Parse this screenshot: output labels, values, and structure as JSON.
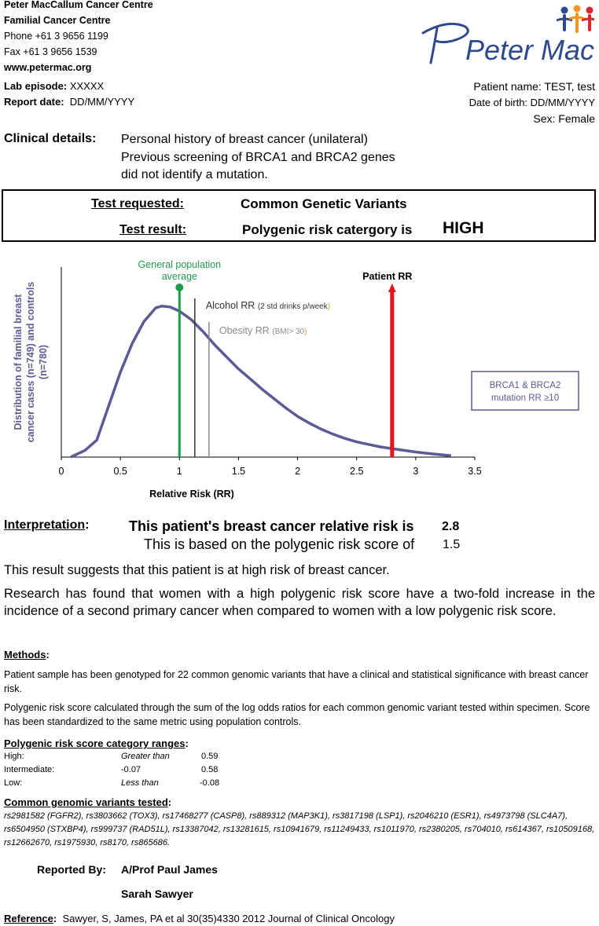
{
  "header": {
    "org": "Peter MacCallum Cancer Centre",
    "dept": "Familial Cancer Centre",
    "phone": "Phone +61 3 9656 1199",
    "fax": "Fax +61 3 9656 1539",
    "web": "www.petermac.org",
    "logo_text": "Peter Mac",
    "lab_label": "Lab episode:",
    "lab_value": "XXXXX",
    "report_label": "Report date:",
    "report_value": "DD/MM/YYYY",
    "patient_name": "Patient name: TEST, test",
    "dob": "Date of birth: DD/MM/YYYY",
    "sex": "Sex: Female",
    "colors": {
      "blue": "#2c4a8c",
      "orange": "#f29422",
      "red": "#d7282f"
    }
  },
  "clinical": {
    "label": "Clinical details:",
    "lines": [
      "Personal history of breast cancer (unilateral)",
      "Previous screening of BRCA1 and BRCA2 genes",
      "did not identify a mutation."
    ]
  },
  "test": {
    "requested_label": "Test requested:",
    "requested_value": "Common Genetic Variants",
    "result_label": "Test result:",
    "result_value": "Polygenic risk catergory is",
    "result_level": "HIGH"
  },
  "chart_data": {
    "type": "line",
    "ylabel": "Distribution of  familial breast cancer cases (n=749) and controls (n=780)",
    "xlabel": "Relative Risk (RR)",
    "xlim": [
      0,
      3.5
    ],
    "xticks": [
      "0",
      "0.5",
      "1",
      "1.5",
      "2",
      "2.5",
      "3",
      "3.5"
    ],
    "curve": [
      [
        0.08,
        0.0
      ],
      [
        0.2,
        0.04
      ],
      [
        0.3,
        0.1
      ],
      [
        0.35,
        0.2
      ],
      [
        0.4,
        0.3
      ],
      [
        0.5,
        0.5
      ],
      [
        0.6,
        0.67
      ],
      [
        0.7,
        0.8
      ],
      [
        0.8,
        0.88
      ],
      [
        0.85,
        0.89
      ],
      [
        0.92,
        0.885
      ],
      [
        1.0,
        0.86
      ],
      [
        1.1,
        0.81
      ],
      [
        1.2,
        0.74
      ],
      [
        1.3,
        0.66
      ],
      [
        1.4,
        0.59
      ],
      [
        1.5,
        0.52
      ],
      [
        1.6,
        0.46
      ],
      [
        1.7,
        0.4
      ],
      [
        1.8,
        0.345
      ],
      [
        1.9,
        0.29
      ],
      [
        2.0,
        0.24
      ],
      [
        2.1,
        0.2
      ],
      [
        2.2,
        0.165
      ],
      [
        2.3,
        0.135
      ],
      [
        2.4,
        0.11
      ],
      [
        2.5,
        0.09
      ],
      [
        2.6,
        0.075
      ],
      [
        2.7,
        0.06
      ],
      [
        2.8,
        0.05
      ],
      [
        2.9,
        0.04
      ],
      [
        3.0,
        0.03
      ],
      [
        3.1,
        0.022
      ],
      [
        3.2,
        0.015
      ],
      [
        3.3,
        0.008
      ]
    ],
    "markers": {
      "population": {
        "x": 1.0,
        "label_1": "General population",
        "label_2": "average",
        "color": "#1e9b4b"
      },
      "alcohol": {
        "x": 1.13,
        "label": "Alcohol RR",
        "note": "(2 std drinks p/week)",
        "close": ")",
        "color": "#333333"
      },
      "obesity": {
        "x": 1.25,
        "label": "Obesity RR",
        "note": "(BMI> 30",
        "close": ")",
        "color": "#8a8a8a"
      },
      "patient": {
        "x": 2.8,
        "label": "Patient RR",
        "color": "#e3141b"
      }
    },
    "brca_box": {
      "line_1": "BRCA1 & BRCA2",
      "line_2": "mutation RR ≥10",
      "color": "#5b5b95"
    },
    "curve_color": "#5b5b95",
    "grid": false
  },
  "interpretation": {
    "label": "Interpretation",
    "colon": ":",
    "line1": "This patient's breast cancer relative risk is",
    "rr": "2.8",
    "line2": "This is based on the polygenic risk score of",
    "score": "1.5"
  },
  "paragraphs": {
    "p1": "This result suggests that this patient is at high risk of breast cancer.",
    "p2": "Research has found that women with a high polygenic risk score have a two-fold increase in the incidence of a second primary cancer when compared to women with a low polygenic risk score."
  },
  "methods": {
    "title": "Methods",
    "colon": ":",
    "p1": "Patient sample has been genotyped for 22 common genomic variants that have a clinical and statistical significance with breast cancer risk.",
    "p2": "Polygenic risk score calculated through the sum of the log odds ratios for each common genomic variant tested within specimen. Score has been standardized to the same metric using population controls."
  },
  "ranges": {
    "title": "Polygenic risk score category ranges",
    "colon": ":",
    "rows": [
      {
        "label": "High:",
        "a": "Greater than",
        "b": "0.59"
      },
      {
        "label": "Intermediate:",
        "a": "-0.07",
        "b": "0.58"
      },
      {
        "label": "Low:",
        "a": "Less than",
        "b": "-0.08"
      }
    ]
  },
  "variants": {
    "title": "Common genomic variants tested",
    "colon": ":",
    "text": " rs2981582 (FGFR2), rs3803662 (TOX3), rs17468277 (CASP8), rs889312 (MAP3K1), rs3817198 (LSP1), rs2046210 (ESR1), rs4973798 (SLC4A7), rs6504950 (STXBP4), rs999737 (RAD51L), rs13387042,  rs13281615, rs10941679, rs11249433, rs1011970, rs2380205, rs704010, rs614367, rs10509168, rs12662670, rs1975930, rs8170, rs865686."
  },
  "reported": {
    "label": "Reported By:",
    "name1": "A/Prof Paul James",
    "name2": "Sarah Sawyer"
  },
  "reference": {
    "label": "Reference",
    "colon": ":",
    "text": "Sawyer, S, James, PA et al 30(35)4330 2012 Journal of Clinical Oncology"
  }
}
